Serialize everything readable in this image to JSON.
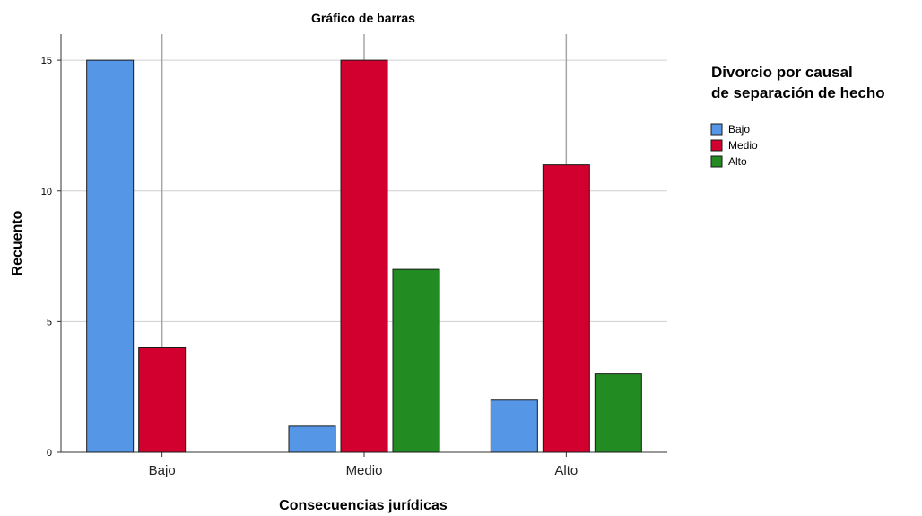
{
  "chart_data": {
    "type": "bar",
    "title": "Gráfico de barras",
    "xlabel": "Consecuencias jurídicas",
    "ylabel": "Recuento",
    "categories": [
      "Bajo",
      "Medio",
      "Alto"
    ],
    "series": [
      {
        "name": "Bajo",
        "color": "#5596e6",
        "values": [
          15,
          1,
          2
        ]
      },
      {
        "name": "Medio",
        "color": "#d2002e",
        "values": [
          4,
          15,
          11
        ]
      },
      {
        "name": "Alto",
        "color": "#228b22",
        "values": [
          0,
          7,
          3
        ]
      }
    ],
    "ylim": [
      0,
      16
    ],
    "yticks": [
      0,
      5,
      10,
      15
    ],
    "grid": true,
    "legend": {
      "title_lines": [
        "Divorcio por causal",
        "de separación de hecho"
      ],
      "placement": "right"
    }
  }
}
